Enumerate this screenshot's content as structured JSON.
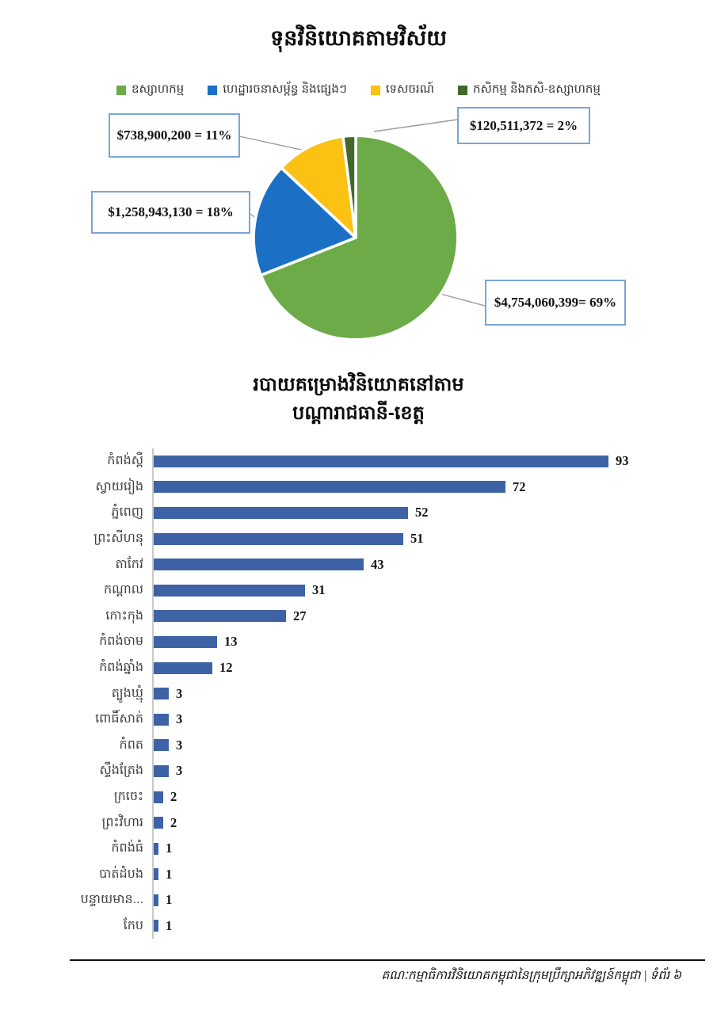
{
  "page": {
    "footer": {
      "text": "គណៈកម្មាធិការវិនិយោគកម្ពុជានៃក្រុមប្រឹក្សាអភិវឌ្ឍន៍កម្ពុជា | ទំព័រ ៦"
    }
  },
  "colors": {
    "bar": "#3D63A6",
    "callout_border": "#7CA4D6",
    "leader_line": "#9A9A9A",
    "axis_line": "#C9C9C9"
  },
  "chart_data": [
    {
      "type": "pie",
      "title": "ទុនវិនិយោគតាមវិស័យ",
      "legend_position": "top",
      "start_angle_deg": 0,
      "direction": "clockwise",
      "slices": [
        {
          "label": "ឧស្សាហកម្ម",
          "value": 4754060399,
          "percent": 69,
          "amount_label": "$4,754,060,399= 69%",
          "color": "#6DAB49"
        },
        {
          "label": "ហេដ្ឋារចនាសម្ព័ន្ធ និងផ្សេងៗ",
          "value": 1258943130,
          "percent": 18,
          "amount_label": "$1,258,943,130 = 18%",
          "color": "#1B70C6"
        },
        {
          "label": "ទេសចរណ៍",
          "value": 738900200,
          "percent": 11,
          "amount_label": "$738,900,200 = 11%",
          "color": "#FBC113"
        },
        {
          "label": "កសិកម្ម និងកសិ-ឧស្សាហកម្ម",
          "value": 120511372,
          "percent": 2,
          "amount_label": "$120,511,372 = 2%",
          "color": "#44682C"
        }
      ]
    },
    {
      "type": "bar",
      "orientation": "horizontal",
      "title_line1": "របាយគម្រោងវិនិយោគនៅតាម",
      "title_line2": "បណ្តារាជធានី-ខេត្ត",
      "xlim": [
        0,
        97
      ],
      "grid": false,
      "categories": [
        "កំពង់ស្ពឺ",
        "ស្វាយរៀង",
        "ភ្នំពេញ",
        "ព្រះសីហនុ",
        "តាកែវ",
        "កណ្តាល",
        "កោះកុង",
        "កំពង់ចាម",
        "កំពង់ឆ្នាំង",
        "ត្បូងឃ្មុំ",
        "ពោធិ៍សាត់",
        "កំពត",
        "ស្ទឹងត្រែង",
        "ក្រចេះ",
        "ព្រះវិហារ",
        "កំពង់ធំ",
        "បាត់ដំបង",
        "បន្ទាយមាន...",
        "កែប"
      ],
      "values": [
        93,
        72,
        52,
        51,
        43,
        31,
        27,
        13,
        12,
        3,
        3,
        3,
        3,
        2,
        2,
        1,
        1,
        1,
        1
      ]
    }
  ]
}
